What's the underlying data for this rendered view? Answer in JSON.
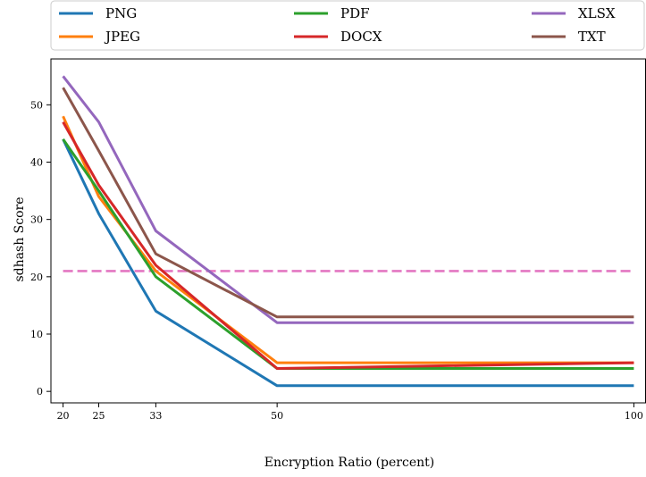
{
  "chart_data": {
    "type": "line",
    "xlabel": "Encryption Ratio (percent)",
    "ylabel": "sdhash Score",
    "x": [
      20,
      25,
      33,
      50,
      100
    ],
    "xticks": [
      20,
      25,
      33,
      50,
      100
    ],
    "yticks": [
      0,
      10,
      20,
      30,
      40,
      50
    ],
    "xlim": [
      18.3,
      101.7
    ],
    "ylim": [
      -2,
      58
    ],
    "grid": false,
    "legend_position": "top",
    "series": [
      {
        "name": "PNG",
        "color": "#1f77b4",
        "values": [
          44,
          31,
          14,
          1,
          1
        ]
      },
      {
        "name": "JPEG",
        "color": "#ff7f0e",
        "values": [
          48,
          34,
          21,
          5,
          5
        ]
      },
      {
        "name": "PDF",
        "color": "#2ca02c",
        "values": [
          44,
          35,
          20,
          4,
          4
        ]
      },
      {
        "name": "DOCX",
        "color": "#d62728",
        "values": [
          47,
          36,
          22,
          4,
          5
        ]
      },
      {
        "name": "XLSX",
        "color": "#9467bd",
        "values": [
          55,
          47,
          28,
          12,
          12
        ]
      },
      {
        "name": "TXT",
        "color": "#8c564b",
        "values": [
          53,
          42,
          24,
          13,
          13
        ]
      }
    ],
    "threshold": {
      "value": 21,
      "color": "#e377c2",
      "style": "dashed",
      "x_range": [
        20,
        100
      ]
    }
  }
}
